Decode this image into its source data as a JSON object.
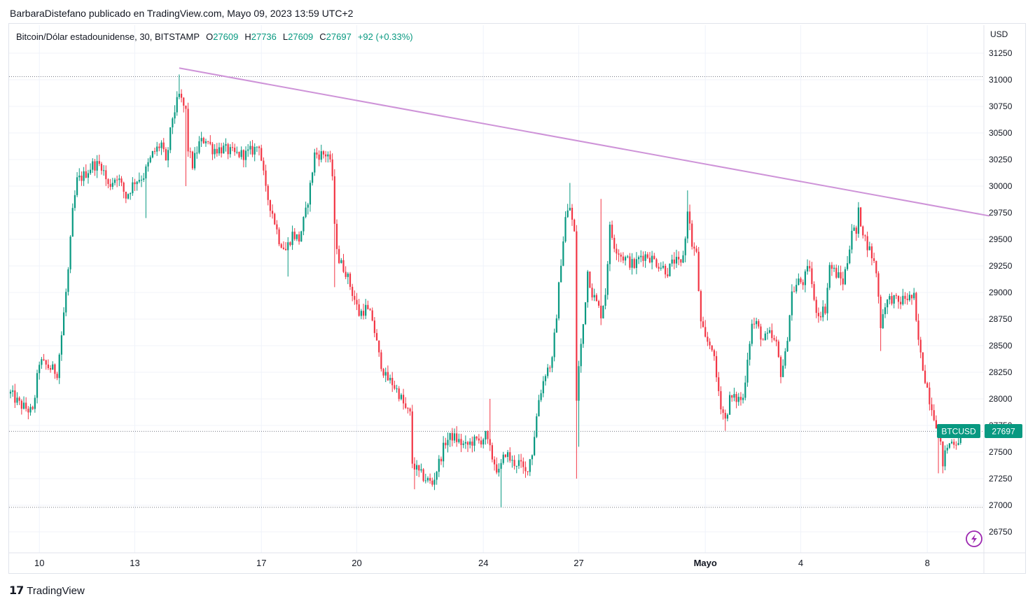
{
  "header": {
    "publisher": "BarbaraDistefano publicado en TradingView.com, Mayo 09, 2023 13:59 UTC+2"
  },
  "legend": {
    "symbol": "Bitcoin/Dólar estadounidense, 30, BITSTAMP",
    "o_label": "O",
    "o_value": "27609",
    "h_label": "H",
    "h_value": "27736",
    "l_label": "L",
    "l_value": "27609",
    "c_label": "C",
    "c_value": "27697",
    "change": "+92 (+0.33%)"
  },
  "axis": {
    "currency": "USD"
  },
  "price_tag": {
    "ticker": "BTCUSD",
    "value": "27697"
  },
  "footer": {
    "brand": "TradingView"
  },
  "colors": {
    "up": "#089981",
    "down": "#f23645",
    "trendline": "#ce93d8",
    "grid": "#f0f3fa",
    "axis_text": "#131722",
    "tag": "#089981"
  },
  "chart_data": {
    "type": "candlestick",
    "symbol": "BTCUSD",
    "timeframe": "30",
    "currency": "USD",
    "y_ticks": [
      26750,
      27000,
      27250,
      27500,
      27750,
      28000,
      28250,
      28500,
      28750,
      29000,
      29250,
      29500,
      29750,
      30000,
      30250,
      30500,
      30750,
      31000,
      31250
    ],
    "x_ticks": [
      {
        "label": "10",
        "index": 13.0
      },
      {
        "label": "13",
        "index": 56.0
      },
      {
        "label": "17",
        "index": 113.0
      },
      {
        "label": "20",
        "index": 156.0
      },
      {
        "label": "24",
        "index": 213.0
      },
      {
        "label": "27",
        "index": 256.0
      },
      {
        "label": "Mayo",
        "index": 313.0,
        "bold": true
      },
      {
        "label": "4",
        "index": 356.0
      },
      {
        "label": "8",
        "index": 413.0
      }
    ],
    "dotted_levels": [
      31030,
      27695,
      26980
    ],
    "trendline": {
      "from": {
        "index": 76.0,
        "price": 31110
      },
      "to": {
        "index": 441.0,
        "price": 29720
      }
    },
    "last_price": 27697,
    "close_path": [
      {
        "i": 0,
        "p": 28050
      },
      {
        "i": 4,
        "p": 27950
      },
      {
        "i": 10,
        "p": 27870
      },
      {
        "i": 13,
        "p": 28350
      },
      {
        "i": 17,
        "p": 28300
      },
      {
        "i": 21,
        "p": 28250
      },
      {
        "i": 23,
        "p": 28600
      },
      {
        "i": 26,
        "p": 29200
      },
      {
        "i": 28,
        "p": 29750
      },
      {
        "i": 30,
        "p": 30050
      },
      {
        "i": 33,
        "p": 30100
      },
      {
        "i": 37,
        "p": 30200
      },
      {
        "i": 41,
        "p": 30200
      },
      {
        "i": 44,
        "p": 30000
      },
      {
        "i": 48,
        "p": 30100
      },
      {
        "i": 52,
        "p": 29900
      },
      {
        "i": 56,
        "p": 30050
      },
      {
        "i": 60,
        "p": 30100
      },
      {
        "i": 64,
        "p": 30300
      },
      {
        "i": 68,
        "p": 30400
      },
      {
        "i": 70,
        "p": 30200
      },
      {
        "i": 73,
        "p": 30650
      },
      {
        "i": 76,
        "p": 30850
      },
      {
        "i": 79,
        "p": 30700
      },
      {
        "i": 80,
        "p": 30350
      },
      {
        "i": 82,
        "p": 30200
      },
      {
        "i": 85,
        "p": 30400
      },
      {
        "i": 88,
        "p": 30450
      },
      {
        "i": 91,
        "p": 30350
      },
      {
        "i": 96,
        "p": 30350
      },
      {
        "i": 101,
        "p": 30300
      },
      {
        "i": 106,
        "p": 30300
      },
      {
        "i": 110,
        "p": 30350
      },
      {
        "i": 112,
        "p": 30400
      },
      {
        "i": 113,
        "p": 30250
      },
      {
        "i": 115,
        "p": 29950
      },
      {
        "i": 118,
        "p": 29750
      },
      {
        "i": 121,
        "p": 29500
      },
      {
        "i": 124,
        "p": 29400
      },
      {
        "i": 127,
        "p": 29550
      },
      {
        "i": 130,
        "p": 29500
      },
      {
        "i": 133,
        "p": 29750
      },
      {
        "i": 135,
        "p": 30000
      },
      {
        "i": 137,
        "p": 30300
      },
      {
        "i": 140,
        "p": 30300
      },
      {
        "i": 143,
        "p": 30300
      },
      {
        "i": 145,
        "p": 30100
      },
      {
        "i": 146,
        "p": 29600
      },
      {
        "i": 148,
        "p": 29300
      },
      {
        "i": 151,
        "p": 29200
      },
      {
        "i": 154,
        "p": 29000
      },
      {
        "i": 157,
        "p": 28800
      },
      {
        "i": 160,
        "p": 28850
      },
      {
        "i": 163,
        "p": 28750
      },
      {
        "i": 166,
        "p": 28400
      },
      {
        "i": 169,
        "p": 28200
      },
      {
        "i": 172,
        "p": 28150
      },
      {
        "i": 175,
        "p": 28050
      },
      {
        "i": 178,
        "p": 27900
      },
      {
        "i": 180,
        "p": 27850
      },
      {
        "i": 181,
        "p": 27400
      },
      {
        "i": 184,
        "p": 27300
      },
      {
        "i": 187,
        "p": 27250
      },
      {
        "i": 190,
        "p": 27200
      },
      {
        "i": 193,
        "p": 27400
      },
      {
        "i": 196,
        "p": 27600
      },
      {
        "i": 199,
        "p": 27650
      },
      {
        "i": 202,
        "p": 27600
      },
      {
        "i": 205,
        "p": 27550
      },
      {
        "i": 208,
        "p": 27600
      },
      {
        "i": 211,
        "p": 27600
      },
      {
        "i": 214,
        "p": 27650
      },
      {
        "i": 217,
        "p": 27450
      },
      {
        "i": 220,
        "p": 27300
      },
      {
        "i": 223,
        "p": 27500
      },
      {
        "i": 226,
        "p": 27400
      },
      {
        "i": 229,
        "p": 27400
      },
      {
        "i": 232,
        "p": 27300
      },
      {
        "i": 235,
        "p": 27500
      },
      {
        "i": 238,
        "p": 28000
      },
      {
        "i": 241,
        "p": 28250
      },
      {
        "i": 244,
        "p": 28350
      },
      {
        "i": 246,
        "p": 28800
      },
      {
        "i": 248,
        "p": 29300
      },
      {
        "i": 250,
        "p": 29700
      },
      {
        "i": 252,
        "p": 29800
      },
      {
        "i": 254,
        "p": 29550
      },
      {
        "i": 255,
        "p": 28000
      },
      {
        "i": 256,
        "p": 28300
      },
      {
        "i": 258,
        "p": 28700
      },
      {
        "i": 260,
        "p": 29200
      },
      {
        "i": 262,
        "p": 29000
      },
      {
        "i": 264,
        "p": 28900
      },
      {
        "i": 266,
        "p": 28800
      },
      {
        "i": 268,
        "p": 29000
      },
      {
        "i": 270,
        "p": 29600
      },
      {
        "i": 272,
        "p": 29450
      },
      {
        "i": 275,
        "p": 29350
      },
      {
        "i": 278,
        "p": 29300
      },
      {
        "i": 281,
        "p": 29250
      },
      {
        "i": 284,
        "p": 29350
      },
      {
        "i": 287,
        "p": 29350
      },
      {
        "i": 290,
        "p": 29300
      },
      {
        "i": 293,
        "p": 29250
      },
      {
        "i": 296,
        "p": 29200
      },
      {
        "i": 299,
        "p": 29300
      },
      {
        "i": 302,
        "p": 29250
      },
      {
        "i": 304,
        "p": 29500
      },
      {
        "i": 305,
        "p": 29800
      },
      {
        "i": 307,
        "p": 29450
      },
      {
        "i": 309,
        "p": 29350
      },
      {
        "i": 311,
        "p": 28700
      },
      {
        "i": 313,
        "p": 28550
      },
      {
        "i": 316,
        "p": 28500
      },
      {
        "i": 318,
        "p": 28200
      },
      {
        "i": 320,
        "p": 27950
      },
      {
        "i": 322,
        "p": 27800
      },
      {
        "i": 324,
        "p": 28000
      },
      {
        "i": 327,
        "p": 28000
      },
      {
        "i": 330,
        "p": 28000
      },
      {
        "i": 332,
        "p": 28400
      },
      {
        "i": 334,
        "p": 28700
      },
      {
        "i": 336,
        "p": 28700
      },
      {
        "i": 339,
        "p": 28550
      },
      {
        "i": 342,
        "p": 28600
      },
      {
        "i": 345,
        "p": 28500
      },
      {
        "i": 347,
        "p": 28250
      },
      {
        "i": 349,
        "p": 28400
      },
      {
        "i": 352,
        "p": 29000
      },
      {
        "i": 355,
        "p": 29100
      },
      {
        "i": 357,
        "p": 29100
      },
      {
        "i": 360,
        "p": 29250
      },
      {
        "i": 362,
        "p": 28900
      },
      {
        "i": 364,
        "p": 28800
      },
      {
        "i": 367,
        "p": 28850
      },
      {
        "i": 369,
        "p": 29250
      },
      {
        "i": 371,
        "p": 29200
      },
      {
        "i": 373,
        "p": 29150
      },
      {
        "i": 375,
        "p": 29100
      },
      {
        "i": 377,
        "p": 29300
      },
      {
        "i": 379,
        "p": 29600
      },
      {
        "i": 381,
        "p": 29550
      },
      {
        "i": 382,
        "p": 29750
      },
      {
        "i": 385,
        "p": 29500
      },
      {
        "i": 388,
        "p": 29350
      },
      {
        "i": 390,
        "p": 29200
      },
      {
        "i": 392,
        "p": 28700
      },
      {
        "i": 394,
        "p": 28900
      },
      {
        "i": 397,
        "p": 28950
      },
      {
        "i": 400,
        "p": 28900
      },
      {
        "i": 403,
        "p": 28950
      },
      {
        "i": 405,
        "p": 28950
      },
      {
        "i": 407,
        "p": 28950
      },
      {
        "i": 408,
        "p": 28700
      },
      {
        "i": 410,
        "p": 28400
      },
      {
        "i": 412,
        "p": 28200
      },
      {
        "i": 414,
        "p": 28000
      },
      {
        "i": 416,
        "p": 27850
      },
      {
        "i": 418,
        "p": 27700
      },
      {
        "i": 420,
        "p": 27400
      },
      {
        "i": 422,
        "p": 27550
      },
      {
        "i": 424,
        "p": 27600
      },
      {
        "i": 426,
        "p": 27600
      },
      {
        "i": 428,
        "p": 27650
      },
      {
        "i": 430,
        "p": 27697
      }
    ],
    "extreme_wicks": [
      {
        "i": 76,
        "high": 31050
      },
      {
        "i": 79,
        "low": 30000
      },
      {
        "i": 61,
        "low": 29700
      },
      {
        "i": 125,
        "low": 29150
      },
      {
        "i": 146,
        "low": 29050
      },
      {
        "i": 182,
        "low": 27150
      },
      {
        "i": 216,
        "high": 28000
      },
      {
        "i": 221,
        "low": 26980
      },
      {
        "i": 252,
        "high": 30030
      },
      {
        "i": 255,
        "low": 27250
      },
      {
        "i": 256,
        "low": 27550
      },
      {
        "i": 266,
        "high": 29880
      },
      {
        "i": 305,
        "high": 29960
      },
      {
        "i": 322,
        "low": 27700
      },
      {
        "i": 382,
        "high": 29850
      },
      {
        "i": 392,
        "low": 28450
      },
      {
        "i": 418,
        "low": 27300
      }
    ]
  }
}
